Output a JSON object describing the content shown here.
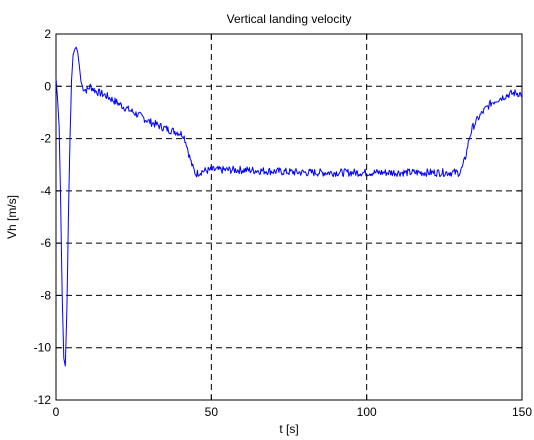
{
  "chart_data": {
    "type": "line",
    "title": "Vertical landing velocity",
    "xlabel": "t [s]",
    "ylabel": "Vh [m/s]",
    "xlim": [
      0,
      150
    ],
    "ylim": [
      -12,
      2
    ],
    "xticks": [
      0,
      50,
      100,
      150
    ],
    "yticks": [
      -12,
      -10,
      -8,
      -6,
      -4,
      -2,
      0,
      2
    ],
    "xtick_labels": [
      "0",
      "50",
      "100",
      "150"
    ],
    "ytick_labels": [
      "-12",
      "-10",
      "-8",
      "-6",
      "-4",
      "-2",
      "0",
      "2"
    ],
    "grid": true,
    "grid_style": "dashed",
    "line_color": "#0000ff",
    "series": [
      {
        "x": [
          0,
          0.5,
          1,
          1.5,
          2,
          2.5,
          3,
          3.5,
          4,
          4.5,
          5,
          5.5,
          6,
          6.5,
          7,
          7.5,
          8,
          8.5,
          9,
          10,
          11,
          12,
          13,
          14,
          15,
          16,
          18,
          20,
          22,
          25,
          28,
          30,
          33,
          36,
          39,
          41,
          42,
          43,
          44,
          45,
          47,
          50,
          60,
          70,
          80,
          90,
          100,
          110,
          120,
          128,
          130,
          131,
          132,
          133,
          134,
          136,
          138,
          140,
          142,
          144,
          146,
          148,
          150
        ],
        "y": [
          0.3,
          -0.5,
          -1.5,
          -4.5,
          -8,
          -10.4,
          -10.7,
          -8.5,
          -5,
          -2,
          0.2,
          1.2,
          1.4,
          1.5,
          1.3,
          0.8,
          0.2,
          0.0,
          -0.1,
          -0.15,
          0.0,
          -0.1,
          -0.2,
          -0.25,
          -0.3,
          -0.35,
          -0.5,
          -0.65,
          -0.8,
          -1.0,
          -1.2,
          -1.35,
          -1.5,
          -1.65,
          -1.75,
          -1.85,
          -2.2,
          -2.7,
          -3.1,
          -3.35,
          -3.25,
          -3.2,
          -3.2,
          -3.25,
          -3.3,
          -3.3,
          -3.3,
          -3.3,
          -3.3,
          -3.3,
          -3.3,
          -3.05,
          -2.6,
          -2.0,
          -1.6,
          -1.2,
          -0.9,
          -0.65,
          -0.5,
          -0.4,
          -0.3,
          -0.25,
          -0.3
        ]
      }
    ]
  }
}
